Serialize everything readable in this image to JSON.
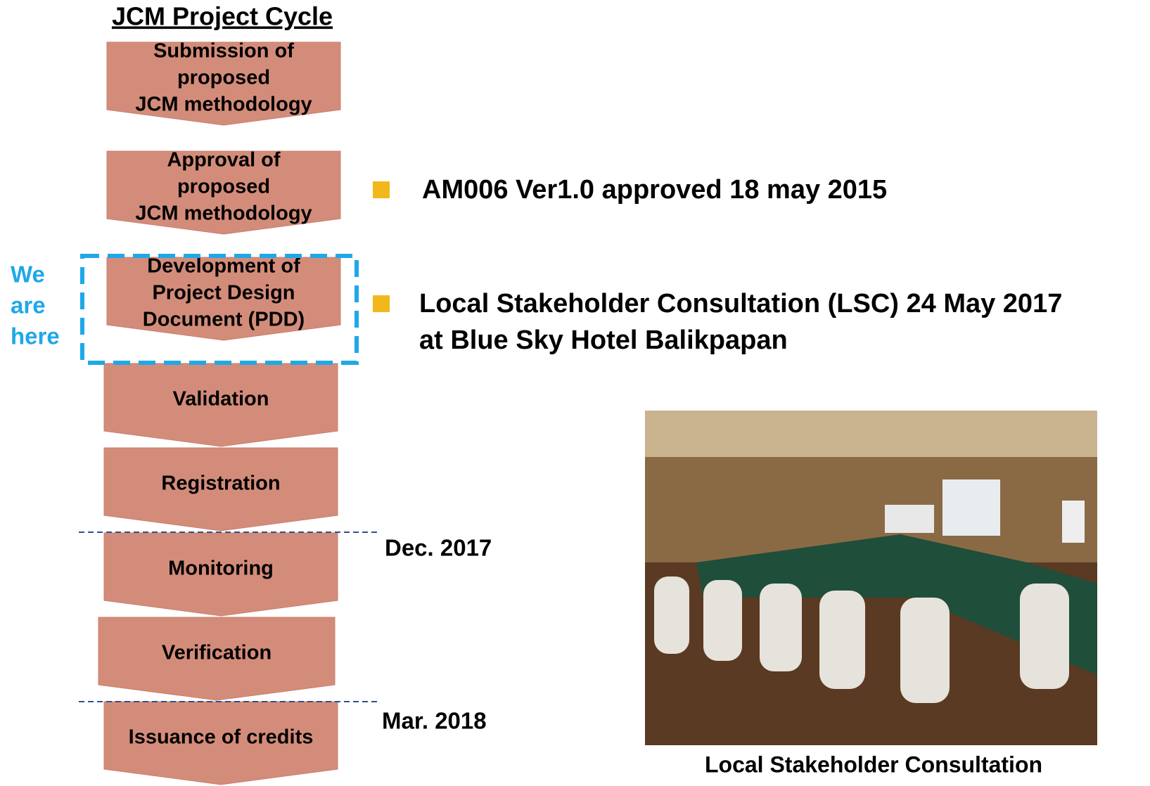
{
  "title": "JCM Project Cycle",
  "steps": [
    [
      "Submission of",
      "proposed",
      "JCM methodology"
    ],
    [
      "Approval of",
      "proposed",
      "JCM methodology"
    ],
    [
      "Development of",
      "Project Design",
      "Document (PDD)"
    ],
    [
      "Validation"
    ],
    [
      "Registration"
    ],
    [
      "Monitoring"
    ],
    [
      "Verification"
    ],
    [
      "Issuance of credits"
    ]
  ],
  "marker": [
    "We",
    "are",
    "here"
  ],
  "bullets": [
    [
      "AM006 Ver1.0 approved  18 may 2015"
    ],
    [
      "Local Stakeholder Consultation (LSC) 24 May 2017",
      "at Blue Sky Hotel Balikpapan"
    ]
  ],
  "milestones": [
    "Dec. 2017",
    "Mar. 2018"
  ],
  "photo_caption": "Local Stakeholder Consultation"
}
